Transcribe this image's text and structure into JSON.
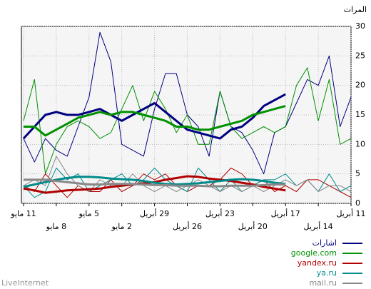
{
  "chart_data": {
    "type": "line",
    "y_label": "المرات",
    "footer": "LiveInternet",
    "x_reversed": true,
    "grid": true,
    "categories": [
      "11 أبريل",
      null,
      null,
      "14 أبريل",
      null,
      null,
      "17 أبريل",
      null,
      null,
      "20 أبريل",
      null,
      null,
      "23 أبريل",
      null,
      null,
      "26 أبريل",
      null,
      null,
      "29 أبريل",
      null,
      null,
      "2 مايو",
      null,
      null,
      "5 مايو",
      null,
      null,
      "8 مايو",
      null,
      null,
      "11 مايو"
    ],
    "ylim": [
      0,
      30
    ],
    "yticks": [
      0,
      5,
      10,
      15,
      20,
      25,
      30
    ],
    "series": [
      {
        "name": "اشارات",
        "color": "#000080",
        "values": [
          18,
          13,
          25,
          20,
          21,
          17,
          13,
          12,
          5,
          9,
          12,
          13,
          19,
          8,
          13,
          15,
          22,
          22,
          16,
          8,
          9,
          10,
          24,
          29,
          18,
          13,
          8,
          9,
          11,
          7,
          11
        ],
        "trend": [
          null,
          null,
          null,
          null,
          null,
          null,
          18.5,
          17.5,
          16.5,
          14.5,
          13,
          12.5,
          11,
          11.5,
          12,
          12.5,
          14,
          15.5,
          17,
          16,
          15,
          14,
          15,
          16,
          15.5,
          15,
          15,
          15.5,
          15,
          13,
          11
        ]
      },
      {
        "name": "google.com",
        "color": "#009000",
        "values": [
          11,
          10,
          21,
          14,
          23,
          20,
          13,
          12,
          13,
          12,
          11,
          13,
          19,
          10,
          10,
          15,
          12,
          16,
          19,
          14,
          20,
          16,
          12,
          11,
          13,
          14,
          13,
          10,
          5,
          21,
          14
        ],
        "trend": [
          null,
          null,
          null,
          null,
          null,
          null,
          16.5,
          16,
          15.5,
          15,
          14,
          13.5,
          13,
          12.5,
          12.5,
          13,
          13,
          14,
          14.5,
          15,
          15.5,
          15.5,
          15,
          15.5,
          15,
          14.5,
          13.5,
          12.5,
          11.5,
          13,
          13
        ]
      },
      {
        "name": "yandex.ru",
        "color": "#b00000",
        "values": [
          1,
          2,
          3,
          4,
          4,
          2,
          3,
          2,
          4,
          3,
          5,
          6,
          4,
          3,
          3,
          2,
          3,
          5,
          4,
          5,
          3,
          2,
          4,
          2,
          2,
          3,
          1,
          3,
          5,
          2,
          3
        ],
        "trend": [
          null,
          null,
          null,
          null,
          null,
          null,
          2.2,
          2.5,
          2.8,
          3.2,
          3.5,
          3.8,
          4,
          4.2,
          4.5,
          4.6,
          4.3,
          4,
          3.6,
          3.4,
          3.2,
          3,
          2.8,
          2.5,
          2.4,
          2.3,
          2.2,
          2,
          1.8,
          2.2,
          2.5
        ]
      },
      {
        "name": "ya.ru",
        "color": "#008b8b",
        "values": [
          3,
          2,
          5,
          2,
          4,
          3,
          5,
          4,
          4,
          3,
          2,
          4,
          2,
          4,
          6,
          2,
          3,
          4,
          6,
          4,
          3,
          5,
          4,
          3,
          2,
          5,
          4,
          6,
          2,
          1,
          3
        ],
        "trend": [
          null,
          null,
          null,
          null,
          null,
          null,
          3.3,
          3.5,
          3.8,
          4,
          4.1,
          4,
          3.8,
          3.6,
          3.4,
          3.3,
          3.2,
          3.3,
          3.5,
          3.8,
          4,
          4.1,
          4.2,
          4.4,
          4.5,
          4.5,
          4.3,
          4,
          3.6,
          3.2,
          2.8
        ]
      },
      {
        "name": "mail.ru",
        "color": "#888888",
        "values": [
          2,
          3,
          3,
          2,
          4,
          3,
          4,
          3,
          2,
          3,
          2,
          3,
          2,
          3,
          4,
          3,
          2,
          3,
          2,
          3,
          5,
          3,
          3,
          4,
          2,
          3,
          5,
          8,
          3,
          4,
          3
        ],
        "trend": [
          null,
          null,
          null,
          null,
          null,
          null,
          3.2,
          3.2,
          3.1,
          3,
          3,
          3,
          2.9,
          2.9,
          3,
          3,
          3,
          3.1,
          3.1,
          3.2,
          3.3,
          3.3,
          3.3,
          3.2,
          3.2,
          3.4,
          3.6,
          3.8,
          4,
          4,
          4
        ]
      }
    ]
  }
}
